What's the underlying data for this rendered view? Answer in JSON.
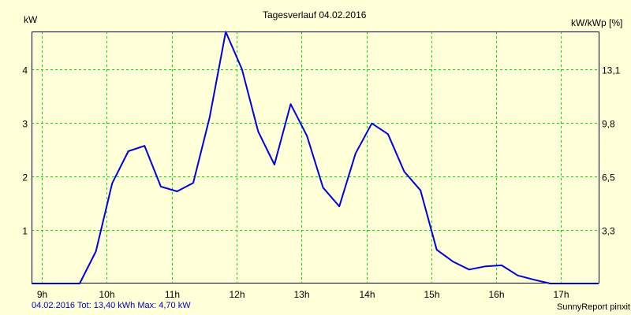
{
  "chart_data": {
    "type": "line",
    "title": "Tagesverlauf 04.02.2016",
    "ylabel": "kW",
    "ylabel_right": "kW/kWp [%]",
    "xlabel": "",
    "ylim": [
      0,
      4.7
    ],
    "xlim": [
      "08:50",
      "17:35"
    ],
    "grid": true,
    "legend": null,
    "x_ticks": [
      "9h",
      "10h",
      "11h",
      "12h",
      "13h",
      "14h",
      "15h",
      "16h",
      "17h"
    ],
    "y_ticks_left": [
      "1",
      "2",
      "3",
      "4"
    ],
    "y_ticks_right": [
      "3,3",
      "6,5",
      "9,8",
      "13,1"
    ],
    "series": [
      {
        "name": "kW",
        "color": "#0000e0",
        "x": [
          "08:50",
          "09:35",
          "09:50",
          "10:05",
          "10:20",
          "10:35",
          "10:50",
          "11:05",
          "11:20",
          "11:35",
          "11:50",
          "12:05",
          "12:20",
          "12:35",
          "12:50",
          "13:05",
          "13:20",
          "13:35",
          "13:50",
          "14:05",
          "14:20",
          "14:35",
          "14:50",
          "15:05",
          "15:20",
          "15:35",
          "15:50",
          "16:05",
          "16:20",
          "16:35",
          "16:50",
          "17:35"
        ],
        "values": [
          0,
          0,
          0.6,
          1.87,
          2.47,
          2.57,
          1.81,
          1.72,
          1.88,
          3.09,
          4.7,
          4.0,
          2.84,
          2.22,
          3.35,
          2.76,
          1.79,
          1.44,
          2.43,
          2.99,
          2.79,
          2.09,
          1.74,
          0.63,
          0.41,
          0.26,
          0.32,
          0.34,
          0.15,
          0.07,
          0,
          0
        ]
      }
    ]
  },
  "labels": {
    "title": "Tagesverlauf 04.02.2016",
    "y_left_unit": "kW",
    "y_right_unit": "kW/kWp [%]",
    "summary": "04.02.2016 Tot: 13,40 kWh Max: 4,70 kW",
    "branding": "SunnyReport pinxit"
  },
  "colors": {
    "background": "#ffffd8",
    "grid": "#00e000",
    "line": "#0000e0",
    "axis": "#000000",
    "summary_text": "#0000c8"
  }
}
